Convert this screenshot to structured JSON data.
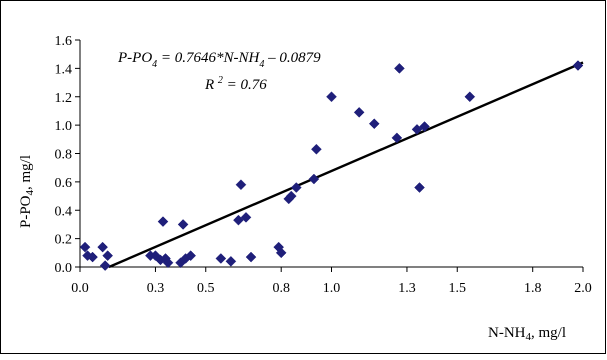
{
  "chart_data": {
    "type": "scatter",
    "title": "",
    "xlabel": "N-NH 4, mg/l",
    "ylabel": "P-PO 4, mg/l",
    "xlim": [
      0.0,
      2.0
    ],
    "ylim": [
      0.0,
      1.6
    ],
    "x_ticks": [
      0.0,
      0.3,
      0.5,
      0.8,
      1.0,
      1.3,
      1.5,
      1.8,
      2.0
    ],
    "x_tick_labels": [
      "0.0",
      "0.3",
      "0.5",
      "0.8",
      "1.0",
      "1.3",
      "1.5",
      "1.8",
      "2.0"
    ],
    "y_ticks": [
      0.0,
      0.2,
      0.4,
      0.6,
      0.8,
      1.0,
      1.2,
      1.4,
      1.6
    ],
    "y_tick_labels": [
      "0.0",
      "0.2",
      "0.4",
      "0.6",
      "0.8",
      "1.0",
      "1.2",
      "1.4",
      "1.6"
    ],
    "grid": false,
    "legend": "none",
    "marker_color": "#1f1f7a",
    "line_color": "#000000",
    "annotations": {
      "equation": "P-PO4 = 0.7646*N-NH4 – 0.0879",
      "r_squared": "R 2 = 0.76"
    },
    "trendline": {
      "slope": 0.7646,
      "intercept": -0.0879
    },
    "x": [
      0.02,
      0.03,
      0.05,
      0.09,
      0.1,
      0.11,
      0.28,
      0.3,
      0.32,
      0.33,
      0.34,
      0.35,
      0.4,
      0.41,
      0.42,
      0.44,
      0.56,
      0.6,
      0.63,
      0.64,
      0.66,
      0.68,
      0.79,
      0.8,
      0.83,
      0.84,
      0.86,
      0.93,
      0.94,
      1.0,
      1.11,
      1.17,
      1.26,
      1.27,
      1.34,
      1.35,
      1.37,
      1.55,
      1.98
    ],
    "y": [
      0.14,
      0.08,
      0.07,
      0.14,
      0.01,
      0.08,
      0.08,
      0.08,
      0.05,
      0.32,
      0.06,
      0.03,
      0.03,
      0.3,
      0.06,
      0.08,
      0.06,
      0.04,
      0.33,
      0.58,
      0.35,
      0.07,
      0.14,
      0.1,
      0.48,
      0.5,
      0.56,
      0.62,
      0.83,
      1.2,
      1.09,
      1.01,
      0.91,
      1.4,
      0.97,
      0.56,
      0.99,
      1.2,
      1.42
    ]
  }
}
